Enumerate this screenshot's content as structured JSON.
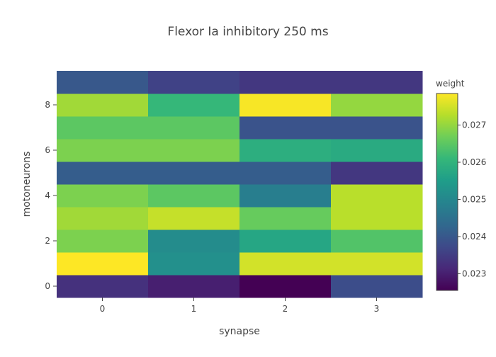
{
  "chart_data": {
    "type": "heatmap",
    "title": "Flexor Ia inhibitory 250 ms",
    "xlabel": "synapse",
    "ylabel": "motoneurons",
    "x": [
      0,
      1,
      2,
      3
    ],
    "y": [
      0,
      1,
      2,
      3,
      4,
      5,
      6,
      7,
      8,
      9
    ],
    "x_ticks": [
      0,
      1,
      2,
      3
    ],
    "y_ticks": [
      0,
      2,
      4,
      6,
      8
    ],
    "zmin": 0.02255,
    "zmax": 0.02785,
    "colorscale": "Viridis",
    "colorbar": {
      "title": "weight",
      "ticks": [
        0.023,
        0.024,
        0.025,
        0.026,
        0.027
      ],
      "tick_labels": [
        "0.023",
        "0.024",
        "0.025",
        "0.026",
        "0.027"
      ]
    },
    "z": [
      [
        0.0233,
        0.023,
        0.02255,
        0.0238
      ],
      [
        0.02785,
        0.0252,
        0.0275,
        0.0275
      ],
      [
        0.0268,
        0.0251,
        0.0257,
        0.0264
      ],
      [
        0.0271,
        0.0274,
        0.0266,
        0.0273
      ],
      [
        0.0268,
        0.0265,
        0.0248,
        0.0273
      ],
      [
        0.0241,
        0.0241,
        0.0241,
        0.0234
      ],
      [
        0.0268,
        0.0268,
        0.0259,
        0.0258
      ],
      [
        0.0265,
        0.0265,
        0.0239,
        0.0239
      ],
      [
        0.0271,
        0.0261,
        0.0278,
        0.027
      ],
      [
        0.024,
        0.0236,
        0.0234,
        0.0234
      ]
    ]
  }
}
